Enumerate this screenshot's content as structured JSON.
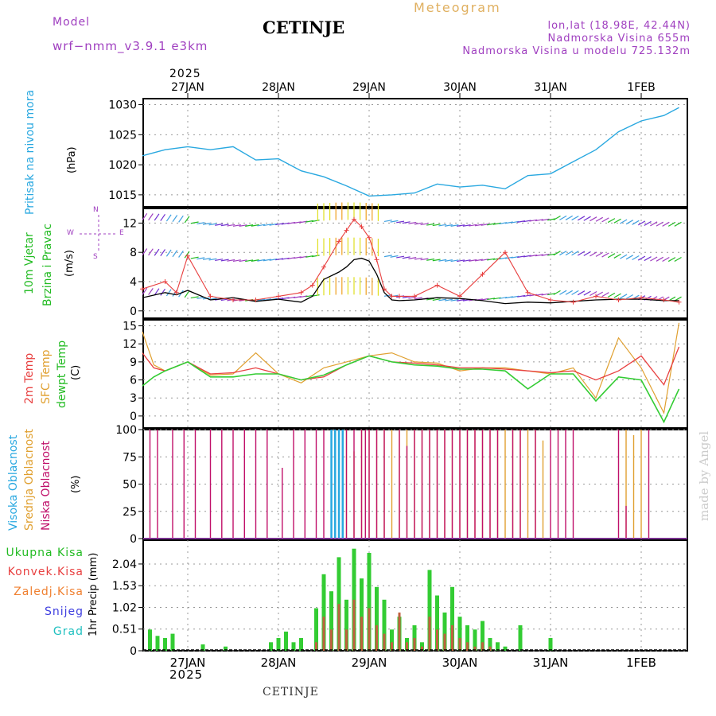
{
  "header": {
    "model_label": "Model",
    "model_name": "wrf−nmm_v3.9.1  e3km",
    "title": "CETINJE",
    "meteogram_label": "Meteogram",
    "coords": "lon,lat (18.98E, 42.44N)",
    "elevation": "Nadmorska Visina 655m",
    "model_elevation": "Nadmorska Visina u modelu 725.132m",
    "year_top": "2025",
    "year_bottom": "2025",
    "footer_title": "CETINJE",
    "watermark": "made by Angel"
  },
  "colors": {
    "pressure": "#29a8e0",
    "wind_green": "#22bb22",
    "purple": "#a040c0",
    "red": "#e84040",
    "orange": "#e0a030",
    "green": "#33cc33",
    "magenta": "#c0106a",
    "blue": "#3060e0",
    "cyan": "#20c0c0",
    "black": "#000000"
  },
  "days": [
    "27JAN",
    "28JAN",
    "29JAN",
    "30JAN",
    "31JAN",
    "1FEB"
  ],
  "panels": {
    "pressure": {
      "label": "Pritisak na nivou mora",
      "unit": "(hPa)"
    },
    "wind": {
      "label1": "10m Vjetar",
      "label2": "Brzina i Pravac",
      "unit": "(m/s)",
      "dir_top": "N",
      "dir_right": "E",
      "dir_left": "W",
      "dir_bottom": "S"
    },
    "temp": {
      "label1": "2m Temp",
      "label2": "SFC Temp",
      "label3": "dewpt Temp",
      "unit": "(C)"
    },
    "cloud": {
      "label1": "Visoka Oblacnost",
      "label2": "Srednja Oblacnost",
      "label3": "Niska Oblacnost",
      "unit": "(%)"
    },
    "precip": {
      "unit": "1hr Precip (mm)",
      "legend": [
        "Ukupna Kisa",
        "Konvek.Kisa",
        "Zaledj.Kisa",
        "Snijeg",
        "Grad"
      ]
    }
  },
  "chart_data": [
    {
      "type": "line",
      "title": "Pritisak na nivou mora",
      "ylabel": "(hPa)",
      "ylim": [
        1013,
        1031
      ],
      "yticks": [
        "1015",
        "1020",
        "1025",
        "1030"
      ],
      "x_hours": [
        -12,
        -6,
        0,
        6,
        12,
        18,
        24,
        30,
        36,
        42,
        48,
        54,
        60,
        66,
        72,
        78,
        84,
        90,
        96,
        102,
        108,
        114,
        120,
        126,
        130
      ],
      "series": [
        {
          "name": "MSLP",
          "values": [
            1021.5,
            1022.5,
            1023,
            1022.5,
            1023,
            1020.8,
            1021,
            1019,
            1018,
            1016.5,
            1014.8,
            1015,
            1015.3,
            1016.8,
            1016.3,
            1016.6,
            1016,
            1018.2,
            1018.5,
            1020.5,
            1022.5,
            1025.5,
            1027.3,
            1028.2,
            1029.5
          ]
        }
      ]
    },
    {
      "type": "line",
      "title": "10m Vjetar Brzina i Pravac",
      "ylabel": "(m/s)",
      "ylim": [
        -1,
        14
      ],
      "yticks": [
        "0",
        "4",
        "8",
        "12"
      ],
      "x_hours": [
        -12,
        -6,
        -3,
        0,
        6,
        12,
        18,
        24,
        30,
        33,
        36,
        40,
        42,
        44,
        46,
        48,
        50,
        52,
        54,
        56,
        60,
        66,
        72,
        78,
        84,
        90,
        96,
        102,
        108,
        114,
        120,
        126,
        130
      ],
      "series": [
        {
          "name": "speed",
          "values": [
            1.8,
            2.5,
            2.2,
            2.8,
            1.5,
            1.8,
            1.3,
            1.6,
            1.2,
            2,
            4.3,
            5.3,
            6,
            7,
            7.2,
            6.8,
            5,
            2.5,
            1.5,
            1.4,
            1.5,
            1.8,
            1.7,
            1.4,
            1.0,
            1.2,
            1.1,
            1.3,
            1.5,
            1.6,
            1.6,
            1.4,
            1.4
          ]
        },
        {
          "name": "gust",
          "values": [
            3,
            4,
            2.5,
            7.5,
            2,
            1.5,
            1.5,
            2,
            2.5,
            3.5,
            6,
            9.5,
            11,
            12.5,
            11.5,
            10,
            7,
            3,
            2,
            2,
            2,
            3.5,
            2,
            5,
            8,
            2.5,
            1.5,
            1.2,
            2,
            1.5,
            1.8,
            1.5,
            1.2
          ]
        }
      ]
    },
    {
      "type": "line",
      "title": "Temperatura",
      "ylabel": "(C)",
      "ylim": [
        -2,
        16
      ],
      "yticks": [
        "0",
        "3",
        "6",
        "9",
        "12",
        "15"
      ],
      "x_hours": [
        -12,
        -9,
        -6,
        0,
        6,
        12,
        18,
        24,
        30,
        36,
        42,
        48,
        54,
        60,
        66,
        72,
        78,
        84,
        90,
        96,
        102,
        108,
        114,
        120,
        126,
        130
      ],
      "series": [
        {
          "name": "2m Temp",
          "values": [
            10.5,
            8,
            7.5,
            9,
            7,
            7.2,
            8,
            7,
            6,
            6.5,
            8.5,
            10,
            9,
            8.8,
            8.5,
            8,
            8,
            7.8,
            7.5,
            7.2,
            7.5,
            6,
            7.5,
            10,
            5.2,
            11.5
          ]
        },
        {
          "name": "SFC Temp",
          "values": [
            14,
            8.5,
            7.5,
            9,
            6.8,
            7,
            10.5,
            7,
            5.5,
            8,
            9,
            10,
            10.5,
            9,
            8.8,
            7.5,
            8,
            8,
            7.5,
            7,
            8,
            3,
            13,
            8,
            0.5,
            15.5
          ]
        },
        {
          "name": "dewpt Temp",
          "values": [
            5,
            6.5,
            7.5,
            9,
            6.5,
            6.5,
            7,
            7,
            6,
            6.8,
            8.5,
            10,
            9,
            8.5,
            8.3,
            7.8,
            7.8,
            7.5,
            4.5,
            7,
            7,
            2.5,
            6.5,
            6,
            -1,
            4.5
          ]
        }
      ]
    },
    {
      "type": "bar",
      "title": "Oblacnost",
      "ylabel": "(%)",
      "ylim": [
        0,
        100
      ],
      "yticks": [
        "0",
        "25",
        "50",
        "75",
        "100"
      ],
      "series": [
        {
          "name": "Niska",
          "hours": [
            -10,
            -8,
            -4,
            -1,
            2,
            6,
            9,
            12,
            15,
            18,
            21,
            25,
            28,
            31,
            34,
            36,
            38,
            40,
            42,
            44,
            46,
            47,
            48,
            50,
            52,
            56,
            58,
            60,
            62,
            64,
            66,
            68,
            70,
            72,
            74,
            76,
            78,
            80,
            82,
            86,
            88,
            92,
            96,
            98,
            100,
            102,
            114,
            116,
            122
          ],
          "values": [
            100,
            100,
            100,
            100,
            100,
            100,
            100,
            100,
            100,
            100,
            100,
            65,
            100,
            100,
            100,
            100,
            100,
            100,
            100,
            100,
            100,
            100,
            100,
            100,
            100,
            100,
            85,
            100,
            100,
            100,
            100,
            100,
            100,
            100,
            100,
            100,
            100,
            100,
            100,
            100,
            100,
            100,
            100,
            100,
            100,
            100,
            100,
            30,
            100
          ]
        },
        {
          "name": "Srednja",
          "hours": [
            42,
            44,
            46,
            48,
            50,
            52,
            54,
            56,
            58,
            60,
            62,
            64,
            66,
            68,
            70,
            72,
            74,
            76,
            78,
            80,
            82,
            84,
            86,
            88,
            90,
            92,
            94,
            116,
            118,
            120
          ],
          "values": [
            100,
            80,
            100,
            100,
            100,
            100,
            100,
            100,
            100,
            100,
            100,
            100,
            100,
            100,
            100,
            100,
            100,
            100,
            100,
            100,
            100,
            100,
            100,
            100,
            100,
            100,
            90,
            100,
            95,
            100
          ]
        },
        {
          "name": "Visoka",
          "hours": [
            38,
            39,
            40,
            41
          ],
          "values": [
            100,
            100,
            100,
            100
          ]
        }
      ]
    },
    {
      "type": "bar",
      "title": "1hr Precip",
      "ylabel": "1hr Precip (mm)",
      "ylim": [
        0,
        2.6
      ],
      "yticks": [
        "0",
        "0.51",
        "1.02",
        "1.53",
        "2.04"
      ],
      "hours": [
        -10,
        -8,
        -6,
        -4,
        4,
        10,
        22,
        24,
        26,
        28,
        30,
        34,
        36,
        38,
        40,
        42,
        44,
        46,
        48,
        50,
        52,
        54,
        56,
        58,
        60,
        62,
        64,
        66,
        68,
        70,
        72,
        74,
        76,
        78,
        80,
        82,
        84,
        88,
        96
      ],
      "total": [
        0.5,
        0.35,
        0.3,
        0.4,
        0.15,
        0.1,
        0.2,
        0.3,
        0.45,
        0.2,
        0.3,
        1.0,
        1.8,
        1.4,
        2.2,
        1.2,
        2.4,
        1.7,
        2.3,
        1.5,
        1.2,
        0.5,
        0.8,
        0.3,
        0.6,
        0.2,
        1.9,
        1.3,
        0.9,
        1.5,
        0.8,
        0.6,
        0.5,
        0.7,
        0.3,
        0.2,
        0.1,
        0.6,
        0.3
      ],
      "convective": [
        0,
        0,
        0,
        0,
        0,
        0,
        0,
        0,
        0,
        0,
        0,
        0.2,
        0.8,
        0.5,
        1.1,
        0.5,
        1.2,
        0.8,
        1.0,
        0.6,
        0.4,
        0.2,
        0.9,
        0.2,
        0.3,
        0.1,
        0.8,
        0.5,
        0.4,
        0.6,
        0.3,
        0.2,
        0.1,
        0.2,
        0.1,
        0,
        0,
        0,
        0
      ]
    }
  ]
}
